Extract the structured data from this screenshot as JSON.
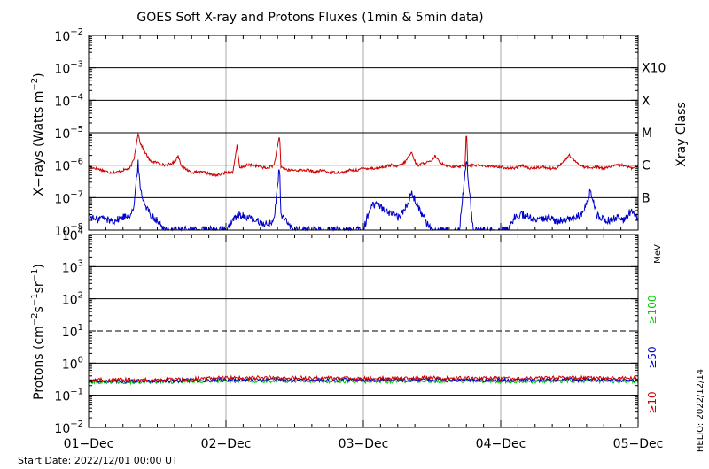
{
  "title": "GOES Soft X-ray and Protons Fluxes   (1min & 5min data)",
  "footer": {
    "start_date": "Start Date: 2022/12/01 00:00 UT",
    "credit": "HELIO: 2022/12/14"
  },
  "colors": {
    "xray_long": "#cc0000",
    "xray_short": "#0000cc",
    "proton_10": "#cc0000",
    "proton_50": "#0000cc",
    "proton_100": "#00cc00",
    "grid": "#000000",
    "day_line": "#aaaaaa"
  },
  "chart_data": [
    {
      "type": "line",
      "panel": "xray",
      "title": "GOES Soft X-ray and Protons Fluxes   (1min & 5min data)",
      "ylabel": "X-rays (Watts m^-2)",
      "ylabel_parts": {
        "base": "X−rays (Watts m",
        "exp": "−2",
        "tail": ")"
      },
      "yscale": "log",
      "ylim": [
        1e-08,
        0.01
      ],
      "yticks": [
        {
          "value": 0.01,
          "base": "10",
          "exp": "−2"
        },
        {
          "value": 0.001,
          "base": "10",
          "exp": "−3"
        },
        {
          "value": 0.0001,
          "base": "10",
          "exp": "−4"
        },
        {
          "value": 1e-05,
          "base": "10",
          "exp": "−5"
        },
        {
          "value": 1e-06,
          "base": "10",
          "exp": "−6"
        },
        {
          "value": 1e-07,
          "base": "10",
          "exp": "−7"
        },
        {
          "value": 1e-08,
          "base": "10",
          "exp": "−8"
        }
      ],
      "xray_classes": {
        "title": "Xray Class",
        "levels": [
          {
            "label": "X10",
            "value": 0.001
          },
          {
            "label": "X",
            "value": 0.0001
          },
          {
            "label": "M",
            "value": 1e-05
          },
          {
            "label": "C",
            "value": 1e-06
          },
          {
            "label": "B",
            "value": 1e-07
          }
        ]
      },
      "grid_lines": [
        0.001,
        0.0001,
        1e-05,
        1e-06,
        1e-07
      ],
      "xlim_days": [
        0,
        4
      ],
      "series": [
        {
          "channel": "long",
          "x_days": [
            0,
            0.05,
            0.1,
            0.15,
            0.2,
            0.25,
            0.3,
            0.33,
            0.36,
            0.375,
            0.4,
            0.45,
            0.5,
            0.55,
            0.6,
            0.63,
            0.65,
            0.68,
            0.7,
            0.75,
            0.8,
            0.85,
            0.9,
            0.95,
            1.0,
            1.05,
            1.08,
            1.1,
            1.15,
            1.2,
            1.25,
            1.3,
            1.35,
            1.39,
            1.4,
            1.42,
            1.45,
            1.5,
            1.55,
            1.6,
            1.65,
            1.7,
            1.75,
            1.8,
            1.85,
            1.9,
            1.95,
            2.0,
            2.05,
            2.1,
            2.15,
            2.2,
            2.25,
            2.3,
            2.35,
            2.38,
            2.4,
            2.45,
            2.5,
            2.52,
            2.55,
            2.6,
            2.65,
            2.7,
            2.74,
            2.75,
            2.76,
            2.8,
            2.85,
            2.9,
            2.95,
            3.0,
            3.05,
            3.1,
            3.15,
            3.2,
            3.25,
            3.3,
            3.35,
            3.4,
            3.45,
            3.5,
            3.55,
            3.6,
            3.65,
            3.7,
            3.75,
            3.8,
            3.85,
            3.9,
            3.95,
            4.0
          ],
          "values": [
            9e-07,
            8e-07,
            7e-07,
            6e-07,
            6e-07,
            7e-07,
            8e-07,
            1.5e-06,
            1e-05,
            5e-06,
            3e-06,
            1.3e-06,
            1.2e-06,
            1e-06,
            1.1e-06,
            1.3e-06,
            2e-06,
            9e-07,
            8e-07,
            6e-07,
            6e-07,
            6e-07,
            5e-07,
            5e-07,
            6e-07,
            6e-07,
            4e-06,
            8e-07,
            1e-06,
            1e-06,
            9e-07,
            8e-07,
            1e-06,
            8e-06,
            9e-07,
            8e-07,
            7e-07,
            7e-07,
            7e-07,
            7e-07,
            6e-07,
            7e-07,
            6e-07,
            6e-07,
            6e-07,
            7e-07,
            7e-07,
            8e-07,
            8e-07,
            8e-07,
            9e-07,
            1e-06,
            9e-07,
            1.2e-06,
            2.5e-06,
            1.2e-06,
            1e-06,
            1.2e-06,
            1.3e-06,
            2e-06,
            1.3e-06,
            1e-06,
            9e-07,
            9e-07,
            1e-06,
            1.3e-05,
            1e-06,
            1e-06,
            1e-06,
            9e-07,
            9e-07,
            9e-07,
            8e-07,
            8e-07,
            1e-06,
            8e-07,
            8e-07,
            9e-07,
            8e-07,
            8e-07,
            1.2e-06,
            2e-06,
            1.2e-06,
            9e-07,
            8e-07,
            9e-07,
            8e-07,
            9e-07,
            1e-06,
            1e-06,
            8e-07,
            9e-07
          ]
        },
        {
          "channel": "short",
          "x_days": [
            0,
            0.05,
            0.1,
            0.15,
            0.2,
            0.25,
            0.3,
            0.33,
            0.36,
            0.375,
            0.4,
            0.45,
            0.5,
            0.55,
            0.6,
            0.65,
            0.7,
            0.8,
            1.0,
            1.05,
            1.1,
            1.15,
            1.2,
            1.3,
            1.35,
            1.39,
            1.4,
            1.45,
            1.5,
            1.6,
            1.7,
            1.8,
            1.9,
            2.0,
            2.05,
            2.1,
            2.15,
            2.2,
            2.25,
            2.3,
            2.35,
            2.4,
            2.45,
            2.5,
            2.55,
            2.6,
            2.65,
            2.7,
            2.75,
            2.8,
            2.9,
            3.0,
            3.05,
            3.1,
            3.15,
            3.2,
            3.25,
            3.3,
            3.35,
            3.4,
            3.45,
            3.5,
            3.55,
            3.6,
            3.65,
            3.7,
            3.75,
            3.8,
            3.85,
            3.9,
            3.95,
            4.0
          ],
          "values": [
            3e-08,
            2e-08,
            2.5e-08,
            2e-08,
            2e-08,
            2.5e-08,
            3e-08,
            5e-08,
            1.2e-06,
            2e-07,
            8e-08,
            3e-08,
            2e-08,
            1e-08,
            1e-08,
            1e-08,
            1e-08,
            1e-08,
            1e-08,
            2e-08,
            3e-08,
            2.5e-08,
            2e-08,
            1.5e-08,
            2e-08,
            1e-06,
            3e-08,
            1.5e-08,
            1e-08,
            1e-08,
            1e-08,
            1e-08,
            1e-08,
            1e-08,
            5e-08,
            7e-08,
            4e-08,
            3e-08,
            2.5e-08,
            4e-08,
            1.5e-07,
            5e-08,
            2e-08,
            1e-08,
            1e-08,
            1e-08,
            1e-08,
            1e-08,
            1.5e-06,
            1e-08,
            1e-08,
            1e-08,
            1e-08,
            2.5e-08,
            3e-08,
            2.5e-08,
            2e-08,
            2e-08,
            2.5e-08,
            2e-08,
            2e-08,
            2e-08,
            2.5e-08,
            3e-08,
            1.5e-07,
            3e-08,
            2e-08,
            2e-08,
            2.5e-08,
            2e-08,
            4e-08,
            2.5e-08
          ]
        }
      ]
    },
    {
      "type": "line",
      "panel": "protons",
      "ylabel": "Protons (cm^-2 s^-1 sr^-1)",
      "ylabel_parts": {
        "base": "Protons (cm",
        "e1": "−2",
        "m1": "s",
        "e2": "−1",
        "m2": "sr",
        "e3": "−1",
        "tail": ")"
      },
      "yscale": "log",
      "ylim": [
        0.01,
        10000
      ],
      "yticks": [
        {
          "value": 10000,
          "base": "10",
          "exp": "4"
        },
        {
          "value": 1000,
          "base": "10",
          "exp": "3"
        },
        {
          "value": 100,
          "base": "10",
          "exp": "2"
        },
        {
          "value": 10,
          "base": "10",
          "exp": "1"
        },
        {
          "value": 1,
          "base": "10",
          "exp": "0"
        },
        {
          "value": 0.1,
          "base": "10",
          "exp": "−1"
        },
        {
          "value": 0.01,
          "base": "10",
          "exp": "−2"
        }
      ],
      "grid_lines": [
        1000,
        100,
        1,
        0.1
      ],
      "threshold_line": 10,
      "energy_unit": "MeV",
      "channel_labels": [
        {
          "label": "≥100",
          "color": "#00cc00"
        },
        {
          "label": "≥50",
          "color": "#0000cc"
        },
        {
          "label": "≥10",
          "color": "#cc0000"
        }
      ],
      "xlim_days": [
        0,
        4
      ],
      "series": [
        {
          "channel": "≥10",
          "x_days": [
            0,
            0.5,
            1,
            1.5,
            2,
            2.5,
            3,
            3.5,
            4
          ],
          "values": [
            0.3,
            0.3,
            0.35,
            0.35,
            0.33,
            0.35,
            0.33,
            0.35,
            0.33
          ]
        },
        {
          "channel": "≥50",
          "x_days": [
            0,
            0.5,
            1,
            1.5,
            2,
            2.5,
            3,
            3.5,
            4
          ],
          "values": [
            0.28,
            0.28,
            0.3,
            0.3,
            0.3,
            0.3,
            0.3,
            0.3,
            0.3
          ]
        },
        {
          "channel": "≥100",
          "x_days": [
            0,
            0.5,
            1,
            1.5,
            2,
            2.5,
            3,
            3.5,
            4
          ],
          "values": [
            0.26,
            0.26,
            0.28,
            0.28,
            0.27,
            0.28,
            0.27,
            0.28,
            0.27
          ]
        }
      ]
    }
  ],
  "x_axis": {
    "tick_labels": [
      "01−Dec",
      "02−Dec",
      "03−Dec",
      "04−Dec",
      "05−Dec"
    ]
  }
}
